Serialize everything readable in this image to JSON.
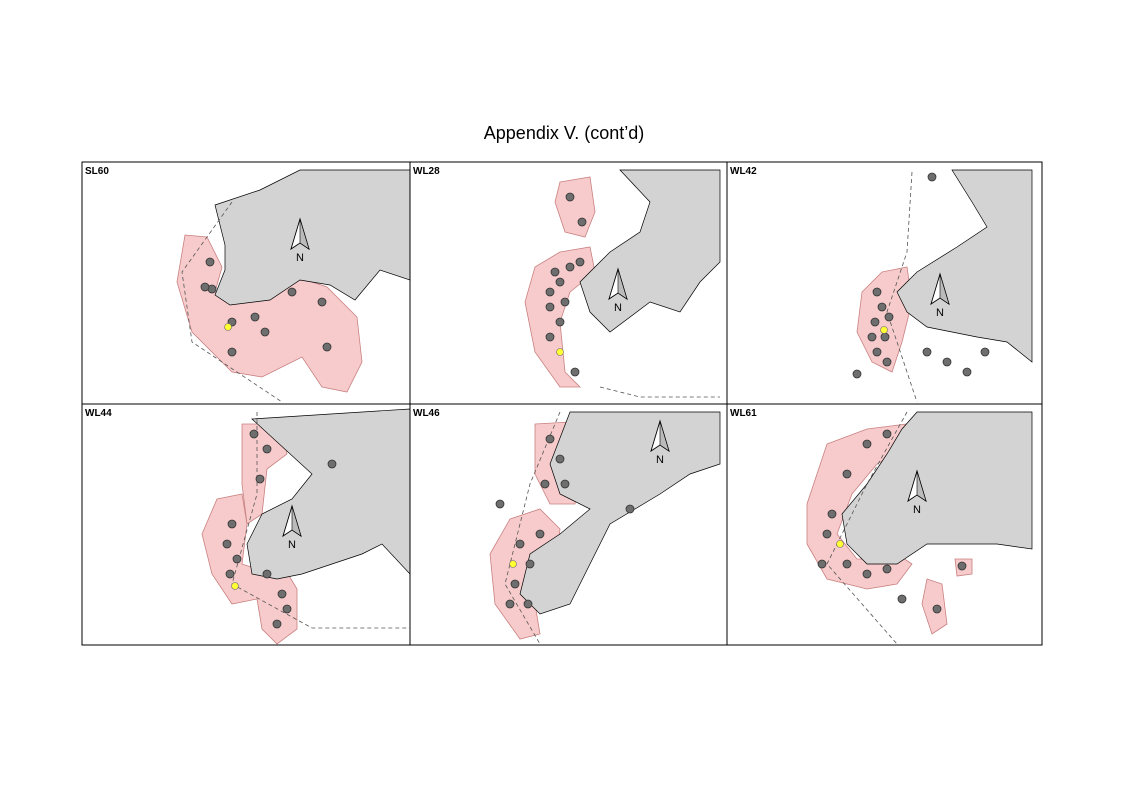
{
  "header": {
    "title": "Appendix V.  (cont’d)"
  },
  "north_label": "N",
  "panels": [
    {
      "label": "SL60"
    },
    {
      "label": "WL28"
    },
    {
      "label": "WL42"
    },
    {
      "label": "WL44"
    },
    {
      "label": "WL46"
    },
    {
      "label": "WL61"
    }
  ]
}
